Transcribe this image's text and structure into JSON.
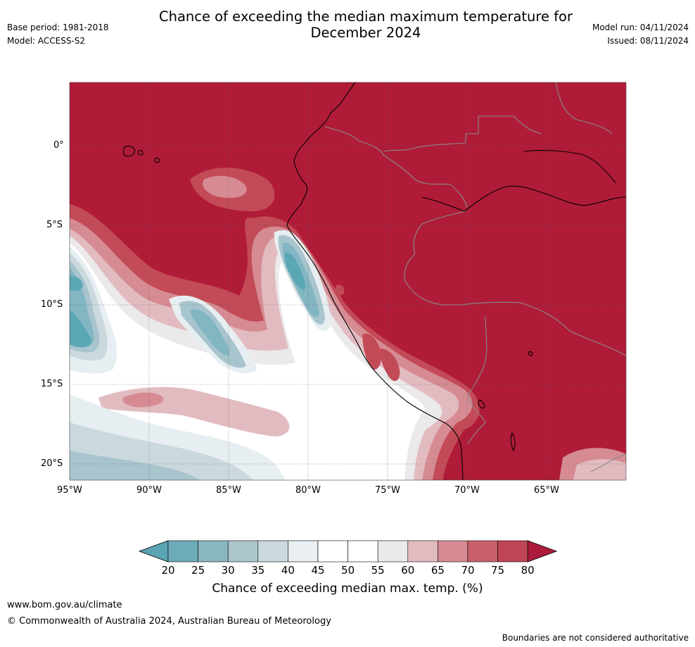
{
  "header": {
    "title_line1": "Chance of exceeding the median maximum temperature for",
    "title_line2": "December 2024",
    "base_period": "Base period: 1981-2018",
    "model": "Model: ACCESS-S2",
    "model_run": "Model run: 04/11/2024",
    "issued": "Issued: 08/11/2024"
  },
  "map": {
    "lat_labels": [
      "0°",
      "5°S",
      "10°S",
      "15°S",
      "20°S"
    ],
    "lon_labels": [
      "95°W",
      "90°W",
      "85°W",
      "80°W",
      "75°W",
      "70°W",
      "65°W"
    ],
    "colors": {
      "ocean_high": "#b01c38",
      "land": "#b01c38",
      "c75": "#c34a57",
      "c70": "#d68b93",
      "c65": "#e2bbc0",
      "c55": "#ebe9ea",
      "c50": "#ffffff",
      "c40": "#e7eef1",
      "c35": "#cbd9de",
      "c30": "#a8c5cd",
      "c25": "#83b6c3",
      "c20": "#5aa7b5"
    }
  },
  "colorbar": {
    "ticks": [
      "20",
      "25",
      "30",
      "35",
      "40",
      "45",
      "50",
      "55",
      "60",
      "65",
      "70",
      "75",
      "80"
    ],
    "colors": [
      "#5aa4b3",
      "#6eabb8",
      "#8ab6c2",
      "#aac6cc",
      "#cad9de",
      "#e9eff2",
      "#ffffff",
      "#ffffff",
      "#ebe9ea",
      "#e2bbc0",
      "#d68b93",
      "#c9616c",
      "#be4654",
      "#ac1b3a"
    ],
    "title": "Chance of exceeding median max. temp. (%)"
  },
  "footer": {
    "url": "www.bom.gov.au/climate",
    "copyright": "© Commonwealth of Australia 2024, Australian Bureau of Meteorology",
    "note": "Boundaries are not considered authoritative"
  }
}
